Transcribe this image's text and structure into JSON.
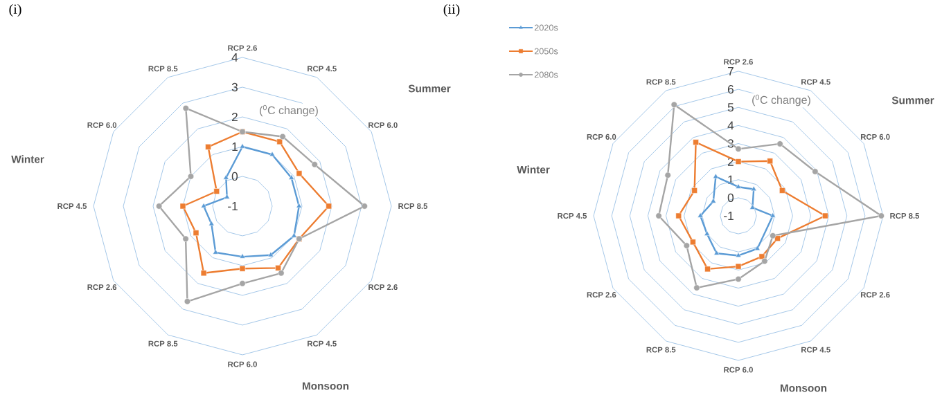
{
  "chart_data": [
    {
      "type": "radar",
      "title": "(i)",
      "ylabel": "($^{0}$C change)",
      "categories": [
        "RCP 2.6",
        "RCP 4.5",
        "RCP 6.0",
        "RCP 8.5",
        "RCP 2.6",
        "RCP 4.5",
        "RCP 6.0",
        "RCP 8.5",
        "RCP 2.6",
        "RCP 4.5",
        "RCP 6.0",
        "RCP 8.5"
      ],
      "ylim": [
        -1,
        4
      ],
      "yticks": [
        -1,
        0,
        1,
        2,
        3,
        4
      ],
      "grid": true,
      "annotations": [
        "Summer",
        "Monsoon",
        "Winter"
      ],
      "series": [
        {
          "color": "#5b9bd5",
          "marker": "triangle",
          "values": [
            1.0,
            1.0,
            0.9,
            0.9,
            1.0,
            0.9,
            0.7,
            0.8,
            0.2,
            0.3,
            -0.4,
            0.1
          ]
        },
        {
          "color": "#ed7d31",
          "marker": "square",
          "values": [
            1.5,
            1.5,
            1.2,
            1.9,
            1.2,
            1.4,
            1.1,
            1.6,
            0.8,
            1.0,
            0.0,
            1.3
          ]
        },
        {
          "color": "#a5a5a5",
          "marker": "circle",
          "values": [
            1.5,
            1.7,
            1.8,
            3.1,
            1.2,
            1.6,
            1.6,
            2.7,
            1.2,
            1.8,
            1.0,
            2.8
          ]
        }
      ]
    },
    {
      "type": "radar",
      "title": "(ii)",
      "ylabel": "($^{0}$C change)",
      "categories": [
        "RCP 2.6",
        "RCP 4.5",
        "RCP 6.0",
        "RCP 8.5",
        "RCP 2.6",
        "RCP 4.5",
        "RCP 6.0",
        "RCP 8.5",
        "RCP 2.6",
        "RCP 4.5",
        "RCP 6.0",
        "RCP 8.5"
      ],
      "ylim": [
        -1,
        7
      ],
      "yticks": [
        -1,
        0,
        1,
        2,
        3,
        4,
        5,
        6,
        7
      ],
      "grid": true,
      "legend": "top left",
      "annotations": [
        "Summer",
        "Monsoon",
        "Winter"
      ],
      "series": [
        {
          "name": "2020s",
          "color": "#5b9bd5",
          "marker": "triangle",
          "values": [
            0.6,
            0.7,
            -0.1,
            0.9,
            null,
            1.1,
            1.2,
            1.4,
            1.0,
            1.1,
            0.6,
            1.5
          ]
        },
        {
          "name": "2050s",
          "color": "#ed7d31",
          "marker": "square",
          "values": [
            2.0,
            2.5,
            1.8,
            3.8,
            1.5,
            1.6,
            1.8,
            2.4,
            1.9,
            2.3,
            1.8,
            3.7
          ]
        },
        {
          "name": "2080s",
          "color": "#a5a5a5",
          "marker": "circle",
          "values": [
            2.7,
            3.6,
            3.9,
            6.9,
            1.2,
            1.9,
            2.5,
            3.6,
            2.3,
            3.4,
            3.5,
            6.1
          ]
        }
      ]
    }
  ]
}
